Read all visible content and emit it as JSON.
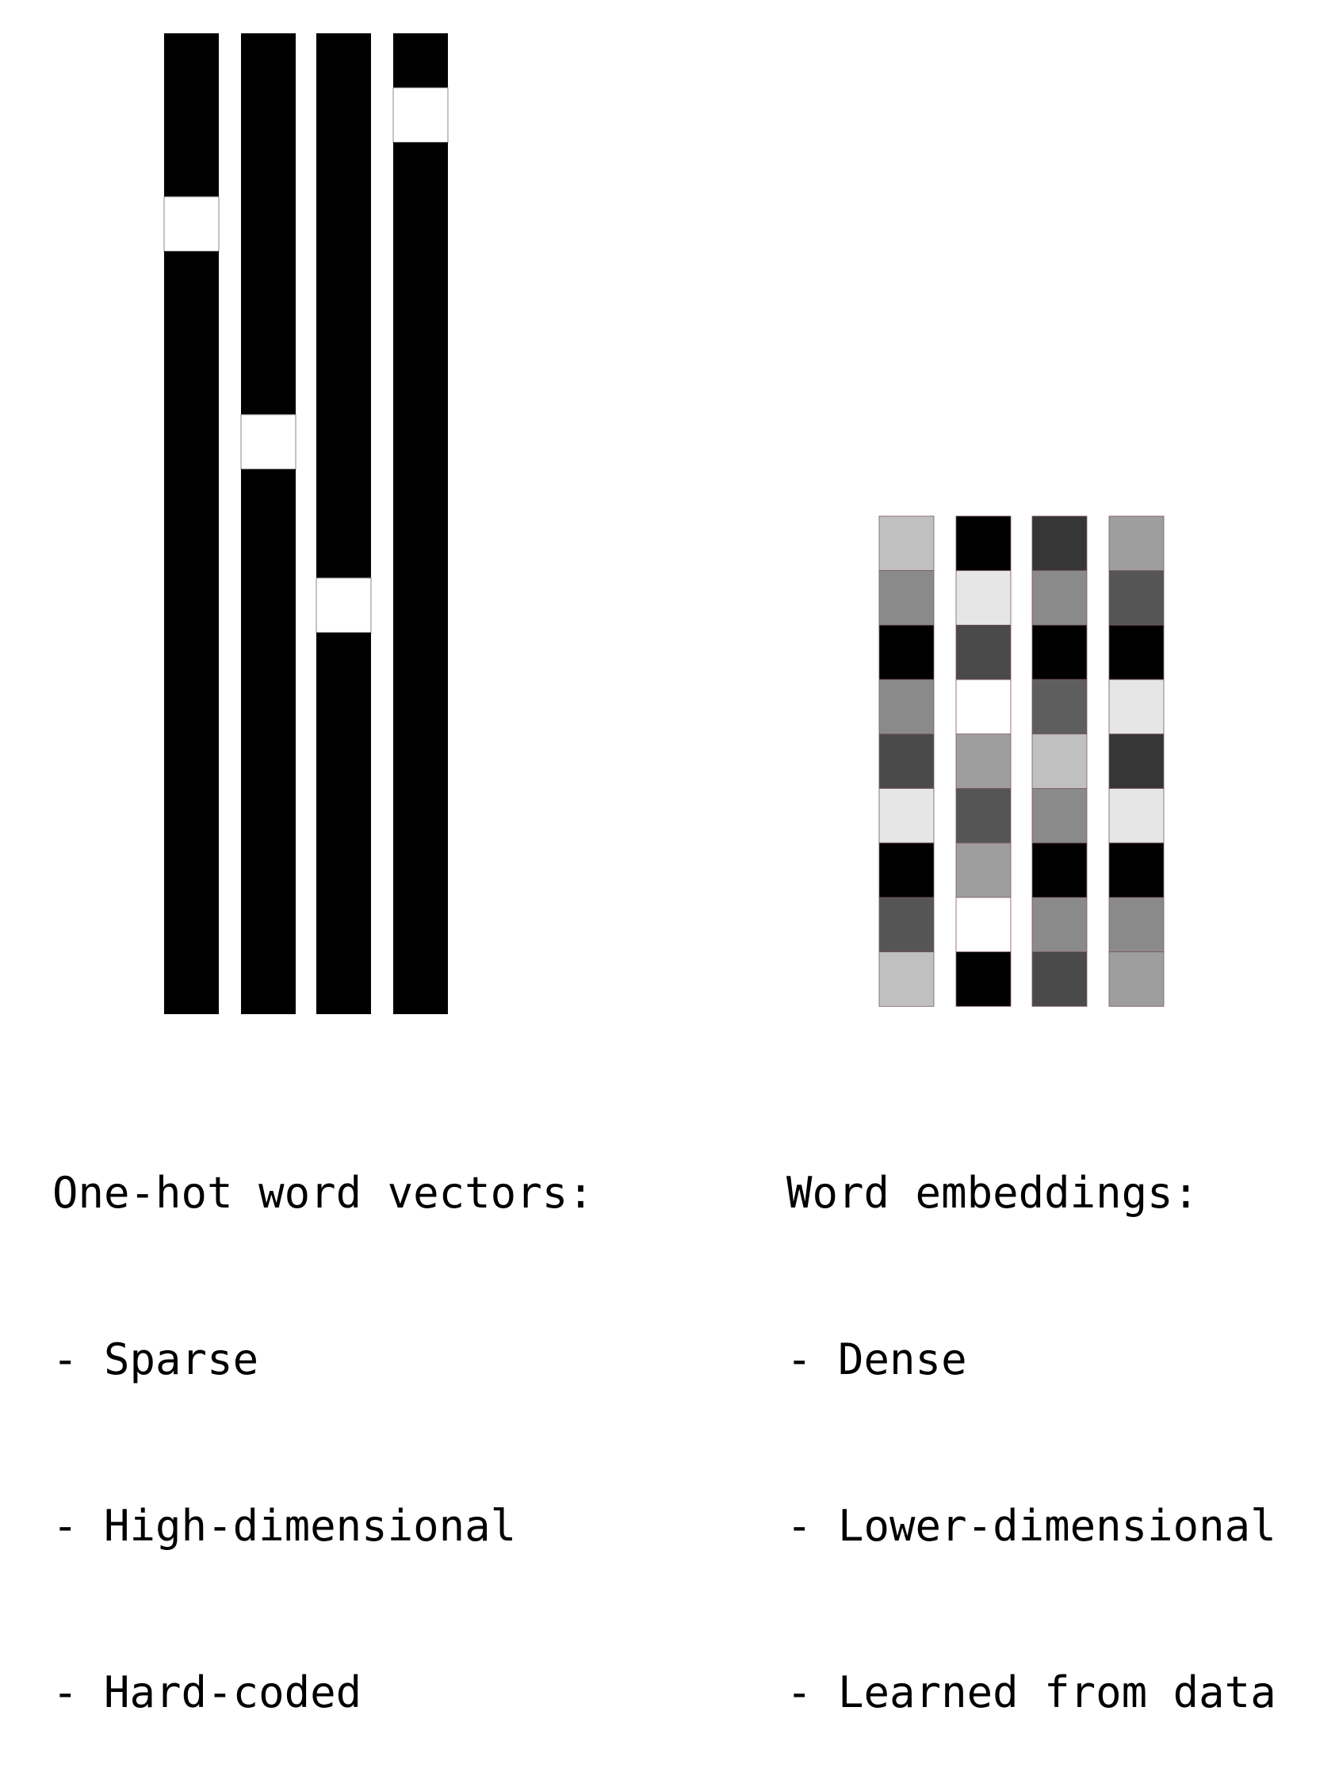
{
  "one_hot": {
    "colors": {
      "hot": "#ffffff",
      "cold": "#000000"
    },
    "dimensions": 18,
    "hot_index": [
      3,
      7,
      10,
      1
    ],
    "caption": {
      "title": "One-hot word vectors:",
      "points": [
        "- Sparse",
        "- High-dimensional",
        "- Hard-coded"
      ]
    }
  },
  "embedding": {
    "dimensions": 9,
    "gray_values": [
      [
        "#c0c0c0",
        "#8a8a8a",
        "#000000",
        "#8a8a8a",
        "#4a4a4a",
        "#e6e6e6",
        "#000000",
        "#555555",
        "#c0c0c0"
      ],
      [
        "#000000",
        "#e6e6e6",
        "#4a4a4a",
        "#ffffff",
        "#9e9e9e",
        "#555555",
        "#9e9e9e",
        "#ffffff",
        "#000000"
      ],
      [
        "#363636",
        "#8a8a8a",
        "#000000",
        "#5e5e5e",
        "#c0c0c0",
        "#8a8a8a",
        "#000000",
        "#8a8a8a",
        "#4a4a4a"
      ],
      [
        "#9e9e9e",
        "#555555",
        "#000000",
        "#e6e6e6",
        "#363636",
        "#e6e6e6",
        "#000000",
        "#8a8a8a",
        "#9e9e9e"
      ]
    ],
    "caption": {
      "title": "Word embeddings:",
      "points": [
        "- Dense",
        "- Lower-dimensional",
        "- Learned from data"
      ]
    }
  }
}
